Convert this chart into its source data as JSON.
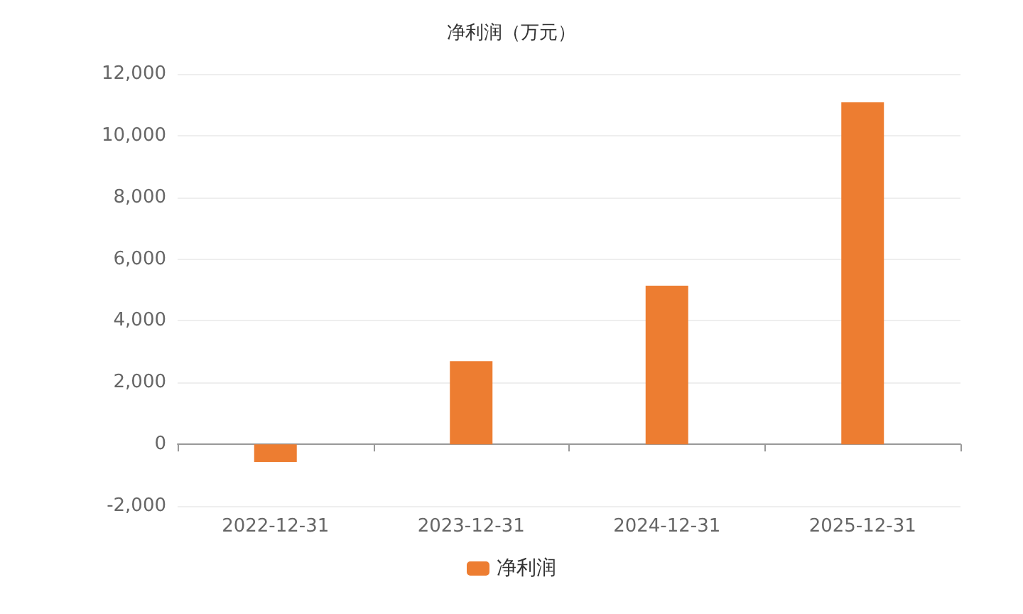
{
  "chart_data": {
    "type": "bar",
    "title": "净利润（万元）",
    "categories": [
      "2022-12-31",
      "2023-12-31",
      "2024-12-31",
      "2025-12-31"
    ],
    "series": [
      {
        "name": "净利润",
        "color": "#ed7d31",
        "values": [
          -570,
          2690,
          5140,
          11080
        ]
      }
    ],
    "ylim": [
      -2000,
      12000
    ],
    "yticks": [
      {
        "value": -2000,
        "label": "-2,000"
      },
      0,
      {
        "value": 2000,
        "label": "2,000"
      },
      {
        "value": 4000,
        "label": "4,000"
      },
      {
        "value": 6000,
        "label": "6,000"
      },
      {
        "value": 8000,
        "label": "8,000"
      },
      {
        "value": 10000,
        "label": "10,000"
      },
      {
        "value": 12000,
        "label": "12,000"
      }
    ],
    "grid": "y",
    "legend": "bottom"
  }
}
